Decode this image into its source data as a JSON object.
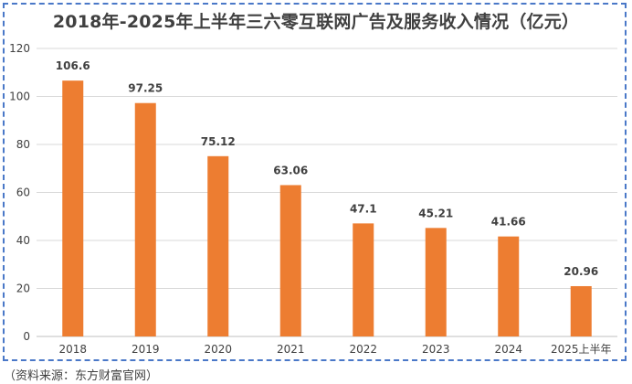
{
  "chart_data": {
    "type": "bar",
    "title": "2018年-2025年上半年三六零互联网广告及服务收入情况（亿元）",
    "categories": [
      "2018",
      "2019",
      "2020",
      "2021",
      "2022",
      "2023",
      "2024",
      "2025上半年"
    ],
    "values": [
      106.6,
      97.25,
      75.12,
      63.06,
      47.1,
      45.21,
      41.66,
      20.96
    ],
    "value_labels": [
      "106.6",
      "97.25",
      "75.12",
      "63.06",
      "47.1",
      "45.21",
      "41.66",
      "20.96"
    ],
    "ylim": [
      0,
      120
    ],
    "yticks": [
      0,
      20,
      40,
      60,
      80,
      100,
      120
    ],
    "grid": true,
    "xlabel": "",
    "ylabel": "",
    "bar_color": "#ed7d31",
    "grid_color": "#d9d9d9",
    "axis_color": "#bfbfbf"
  },
  "source_text": "（资料来源：东方财富官网）"
}
